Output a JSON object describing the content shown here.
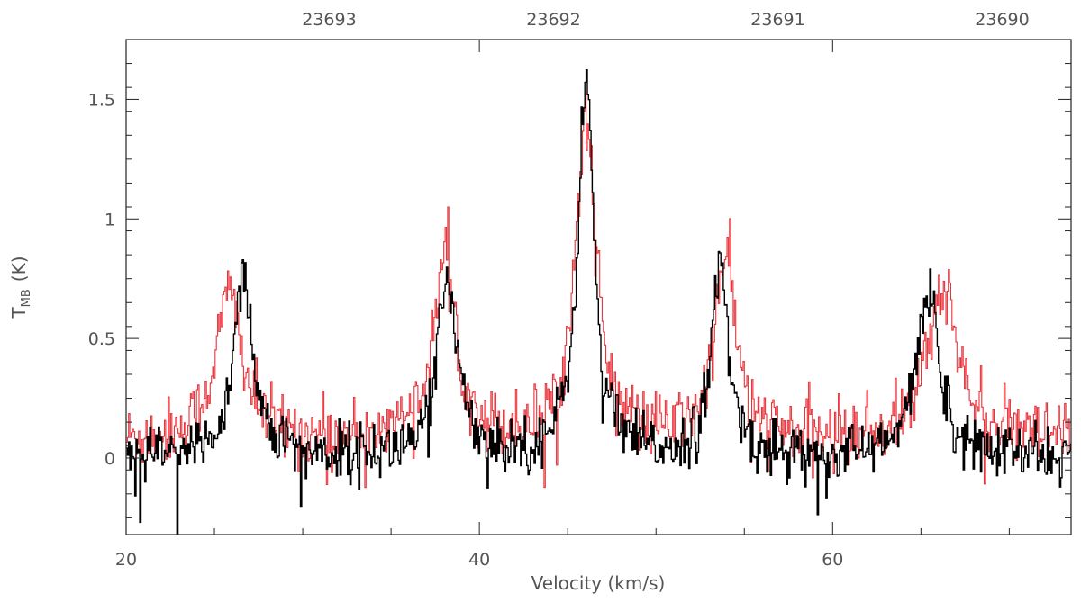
{
  "chart_data": {
    "type": "line",
    "xlabel": "Velocity (km/s)",
    "ylabel_main": "T",
    "ylabel_sub": "MB",
    "ylabel_unit": "(K)",
    "xlim": [
      20,
      73.5
    ],
    "ylim": [
      -0.32,
      1.75
    ],
    "x_major_ticks": [
      20,
      40,
      60
    ],
    "x_minor_ticks": [
      25,
      30,
      35,
      45,
      50,
      55,
      65,
      70
    ],
    "y_major_ticks": [
      0,
      0.5,
      1,
      1.5
    ],
    "y_tick_labels": [
      "0",
      "0.5",
      "1",
      "1.5"
    ],
    "top_axis": {
      "label_positions_velocity": [
        31.5,
        44.2,
        56.9,
        69.6
      ],
      "tick_labels": [
        "23693",
        "23692",
        "23691",
        "23690"
      ]
    },
    "series": [
      {
        "color": "#000000",
        "peaks": [
          {
            "x": 26.6,
            "height": 0.78,
            "width": 0.65
          },
          {
            "x": 38.2,
            "height": 0.73,
            "width": 0.7
          },
          {
            "x": 46.0,
            "height": 1.58,
            "width": 0.55
          },
          {
            "x": 53.6,
            "height": 0.8,
            "width": 0.55
          },
          {
            "x": 65.4,
            "height": 0.71,
            "width": 0.75
          }
        ],
        "noise": 0.06
      },
      {
        "color": "#e8333a",
        "peaks": [
          {
            "x": 25.8,
            "height": 0.62,
            "width": 0.9
          },
          {
            "x": 38.0,
            "height": 0.74,
            "width": 0.8
          },
          {
            "x": 46.0,
            "height": 1.35,
            "width": 0.7
          },
          {
            "x": 53.9,
            "height": 0.78,
            "width": 0.7
          },
          {
            "x": 66.2,
            "height": 0.66,
            "width": 1.0
          }
        ],
        "noise": 0.07,
        "baseline": 0.07
      }
    ]
  }
}
